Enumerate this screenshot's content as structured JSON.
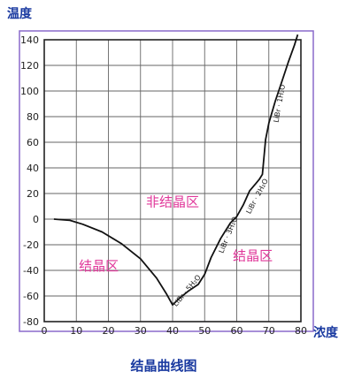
{
  "chart_data": {
    "type": "line",
    "title": "结晶曲线图",
    "xlabel": "浓度",
    "ylabel": "温度",
    "xlim": [
      0,
      80
    ],
    "ylim": [
      -80,
      140
    ],
    "xticks": [
      0,
      10,
      20,
      30,
      40,
      50,
      60,
      70,
      80
    ],
    "yticks": [
      -80,
      -60,
      -40,
      -20,
      0,
      20,
      40,
      60,
      80,
      100,
      120,
      140
    ],
    "grid": true,
    "series": [
      {
        "x": [
          3,
          8,
          12,
          18,
          24,
          30,
          35,
          38,
          40,
          42,
          45,
          48,
          50,
          52,
          55,
          58,
          60,
          62,
          64,
          66,
          67,
          68,
          69,
          70,
          72,
          74,
          76,
          78,
          79
        ],
        "y": [
          0,
          -1,
          -4,
          -10,
          -19,
          -31,
          -46,
          -58,
          -67,
          -62,
          -56,
          -51,
          -43,
          -30,
          -15,
          -3,
          2,
          11,
          22,
          28,
          31,
          35,
          62,
          75,
          92,
          107,
          122,
          136,
          144
        ],
        "color": "#111111"
      }
    ],
    "region_labels": [
      {
        "text": "非结晶区",
        "x": 40,
        "y": 10,
        "color": "#e0389a"
      },
      {
        "text": "结晶区",
        "x": 17,
        "y": -40,
        "color": "#e0389a"
      },
      {
        "text": "结晶区",
        "x": 65,
        "y": -32,
        "color": "#e0389a"
      }
    ],
    "curve_annotations": [
      {
        "text": "LiBr · 5H₂O",
        "x": 45,
        "y": -57,
        "angle": -50
      },
      {
        "text": "LiBr · 3H₂O",
        "x": 58,
        "y": -13,
        "angle": -68
      },
      {
        "text": "LiBr · 2H₂O",
        "x": 67,
        "y": 17,
        "angle": -62
      },
      {
        "text": "LiBr · 1H₂O",
        "x": 74,
        "y": 90,
        "angle": -80
      }
    ],
    "colors": {
      "title": "#1a3aa0",
      "axis_labels": "#1a3aa0",
      "frame_purple": "#8a6acb",
      "grid": "#666666",
      "curve": "#111111"
    }
  }
}
